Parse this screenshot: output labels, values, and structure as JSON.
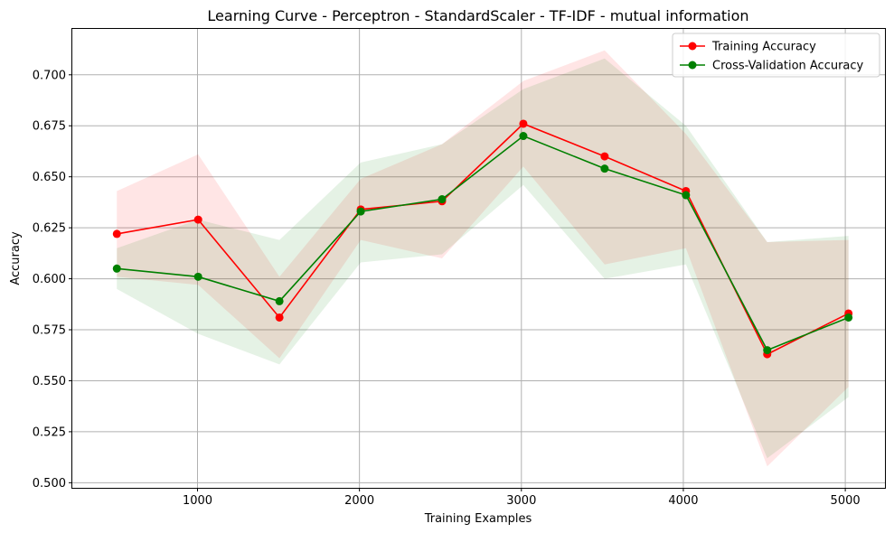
{
  "chart_data": {
    "type": "line",
    "title": "Learning Curve - Perceptron - StandardScaler - TF-IDF - mutual information",
    "xlabel": "Training Examples",
    "ylabel": "Accuracy",
    "x": [
      502,
      1004,
      1506,
      2008,
      2510,
      3012,
      3514,
      4016,
      4518,
      5020
    ],
    "xlim": [
      227,
      5245
    ],
    "ylim": [
      0.4975,
      0.7225
    ],
    "xticks": [
      1000,
      2000,
      3000,
      4000,
      5000
    ],
    "xtick_labels": [
      "1000",
      "2000",
      "3000",
      "4000",
      "5000"
    ],
    "yticks": [
      0.5,
      0.525,
      0.55,
      0.575,
      0.6,
      0.625,
      0.65,
      0.675,
      0.7
    ],
    "ytick_labels": [
      "0.500",
      "0.525",
      "0.550",
      "0.575",
      "0.600",
      "0.625",
      "0.650",
      "0.675",
      "0.700"
    ],
    "grid": true,
    "legend_position": "top-right",
    "series": [
      {
        "name": "Training Accuracy",
        "color": "#ff0000",
        "values": [
          0.622,
          0.629,
          0.581,
          0.634,
          0.638,
          0.676,
          0.66,
          0.643,
          0.563,
          0.583
        ],
        "lower": [
          0.601,
          0.597,
          0.561,
          0.619,
          0.61,
          0.655,
          0.607,
          0.615,
          0.508,
          0.547
        ],
        "upper": [
          0.643,
          0.661,
          0.601,
          0.649,
          0.666,
          0.697,
          0.712,
          0.671,
          0.618,
          0.619
        ]
      },
      {
        "name": "Cross-Validation Accuracy",
        "color": "#008000",
        "values": [
          0.605,
          0.601,
          0.589,
          0.633,
          0.639,
          0.67,
          0.654,
          0.641,
          0.565,
          0.581
        ],
        "lower": [
          0.595,
          0.573,
          0.558,
          0.608,
          0.612,
          0.646,
          0.6,
          0.607,
          0.512,
          0.542
        ],
        "upper": [
          0.615,
          0.629,
          0.619,
          0.657,
          0.666,
          0.693,
          0.708,
          0.675,
          0.618,
          0.621
        ]
      }
    ]
  }
}
